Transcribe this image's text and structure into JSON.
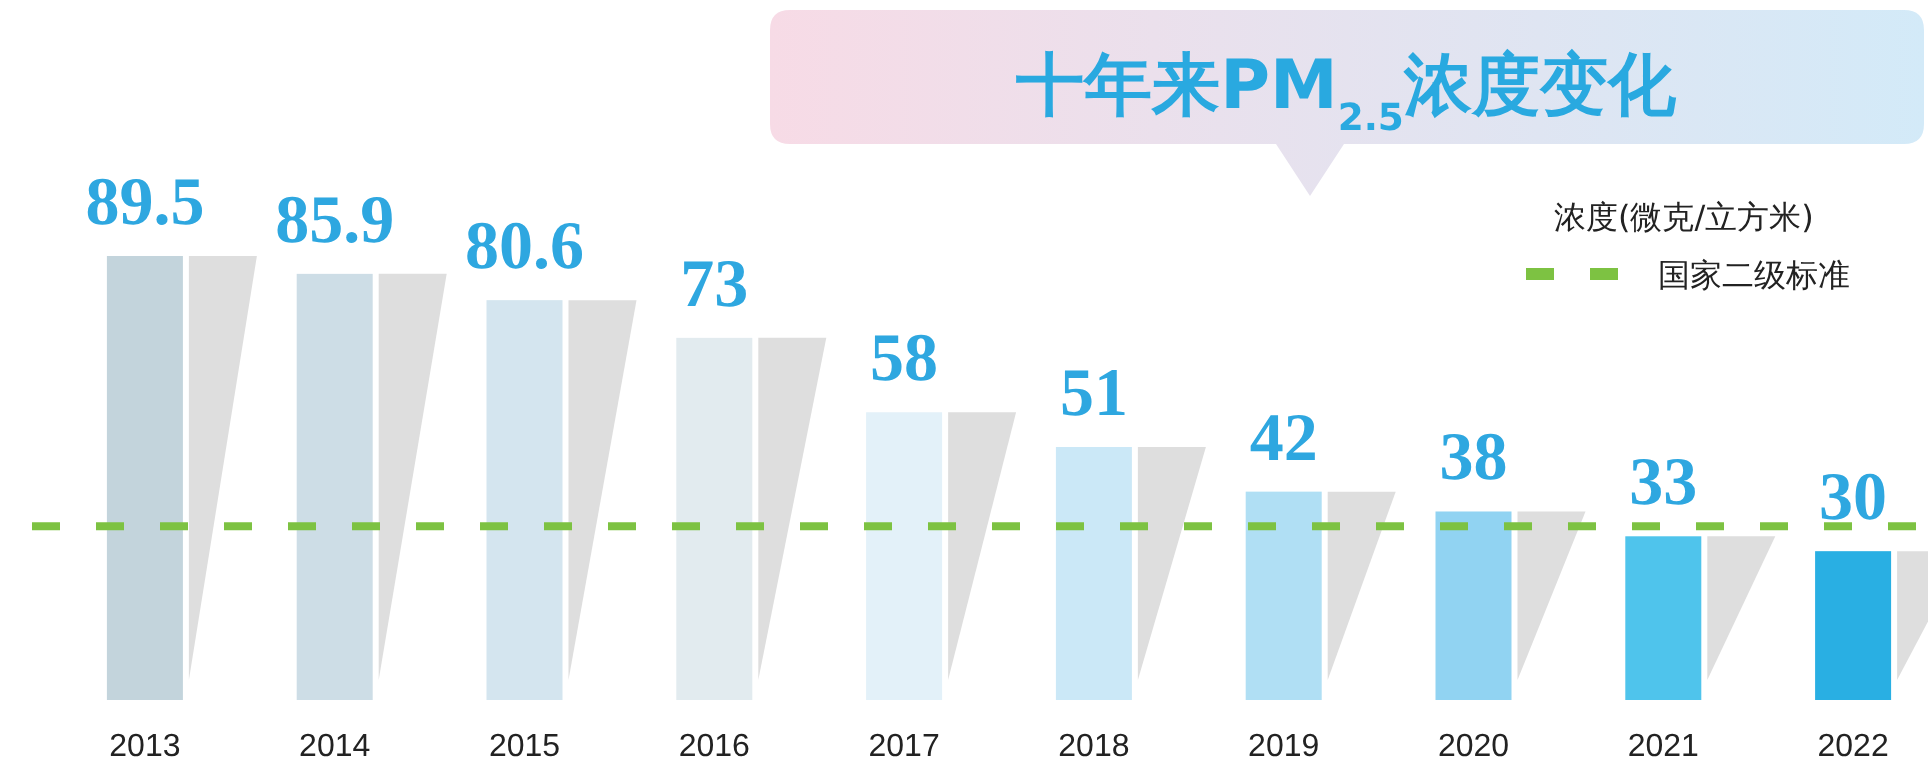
{
  "chart_data": {
    "type": "bar",
    "title": "十年来PM$_{2.5}$浓度变化",
    "legend_title": "浓度(微克/立方米)",
    "legend": "top right",
    "categories": [
      "2013",
      "2014",
      "2015",
      "2016",
      "2017",
      "2018",
      "2019",
      "2020",
      "2021",
      "2022"
    ],
    "values": [
      89.5,
      85.9,
      80.6,
      73,
      58,
      51,
      42,
      38,
      33,
      30
    ],
    "colors": [
      "#c3d4dc",
      "#cddde6",
      "#d4e5ef",
      "#e2ebef",
      "#e3f1f9",
      "#cbe8f7",
      "#b0dff4",
      "#91d3f2",
      "#4fc4ec",
      "#29afe3"
    ],
    "data_labels": true,
    "ref_lines": [
      {
        "axis": "y",
        "value": 35,
        "label": "国家二级标准",
        "color": "#7dc242",
        "line_style": "dashed"
      }
    ]
  }
}
